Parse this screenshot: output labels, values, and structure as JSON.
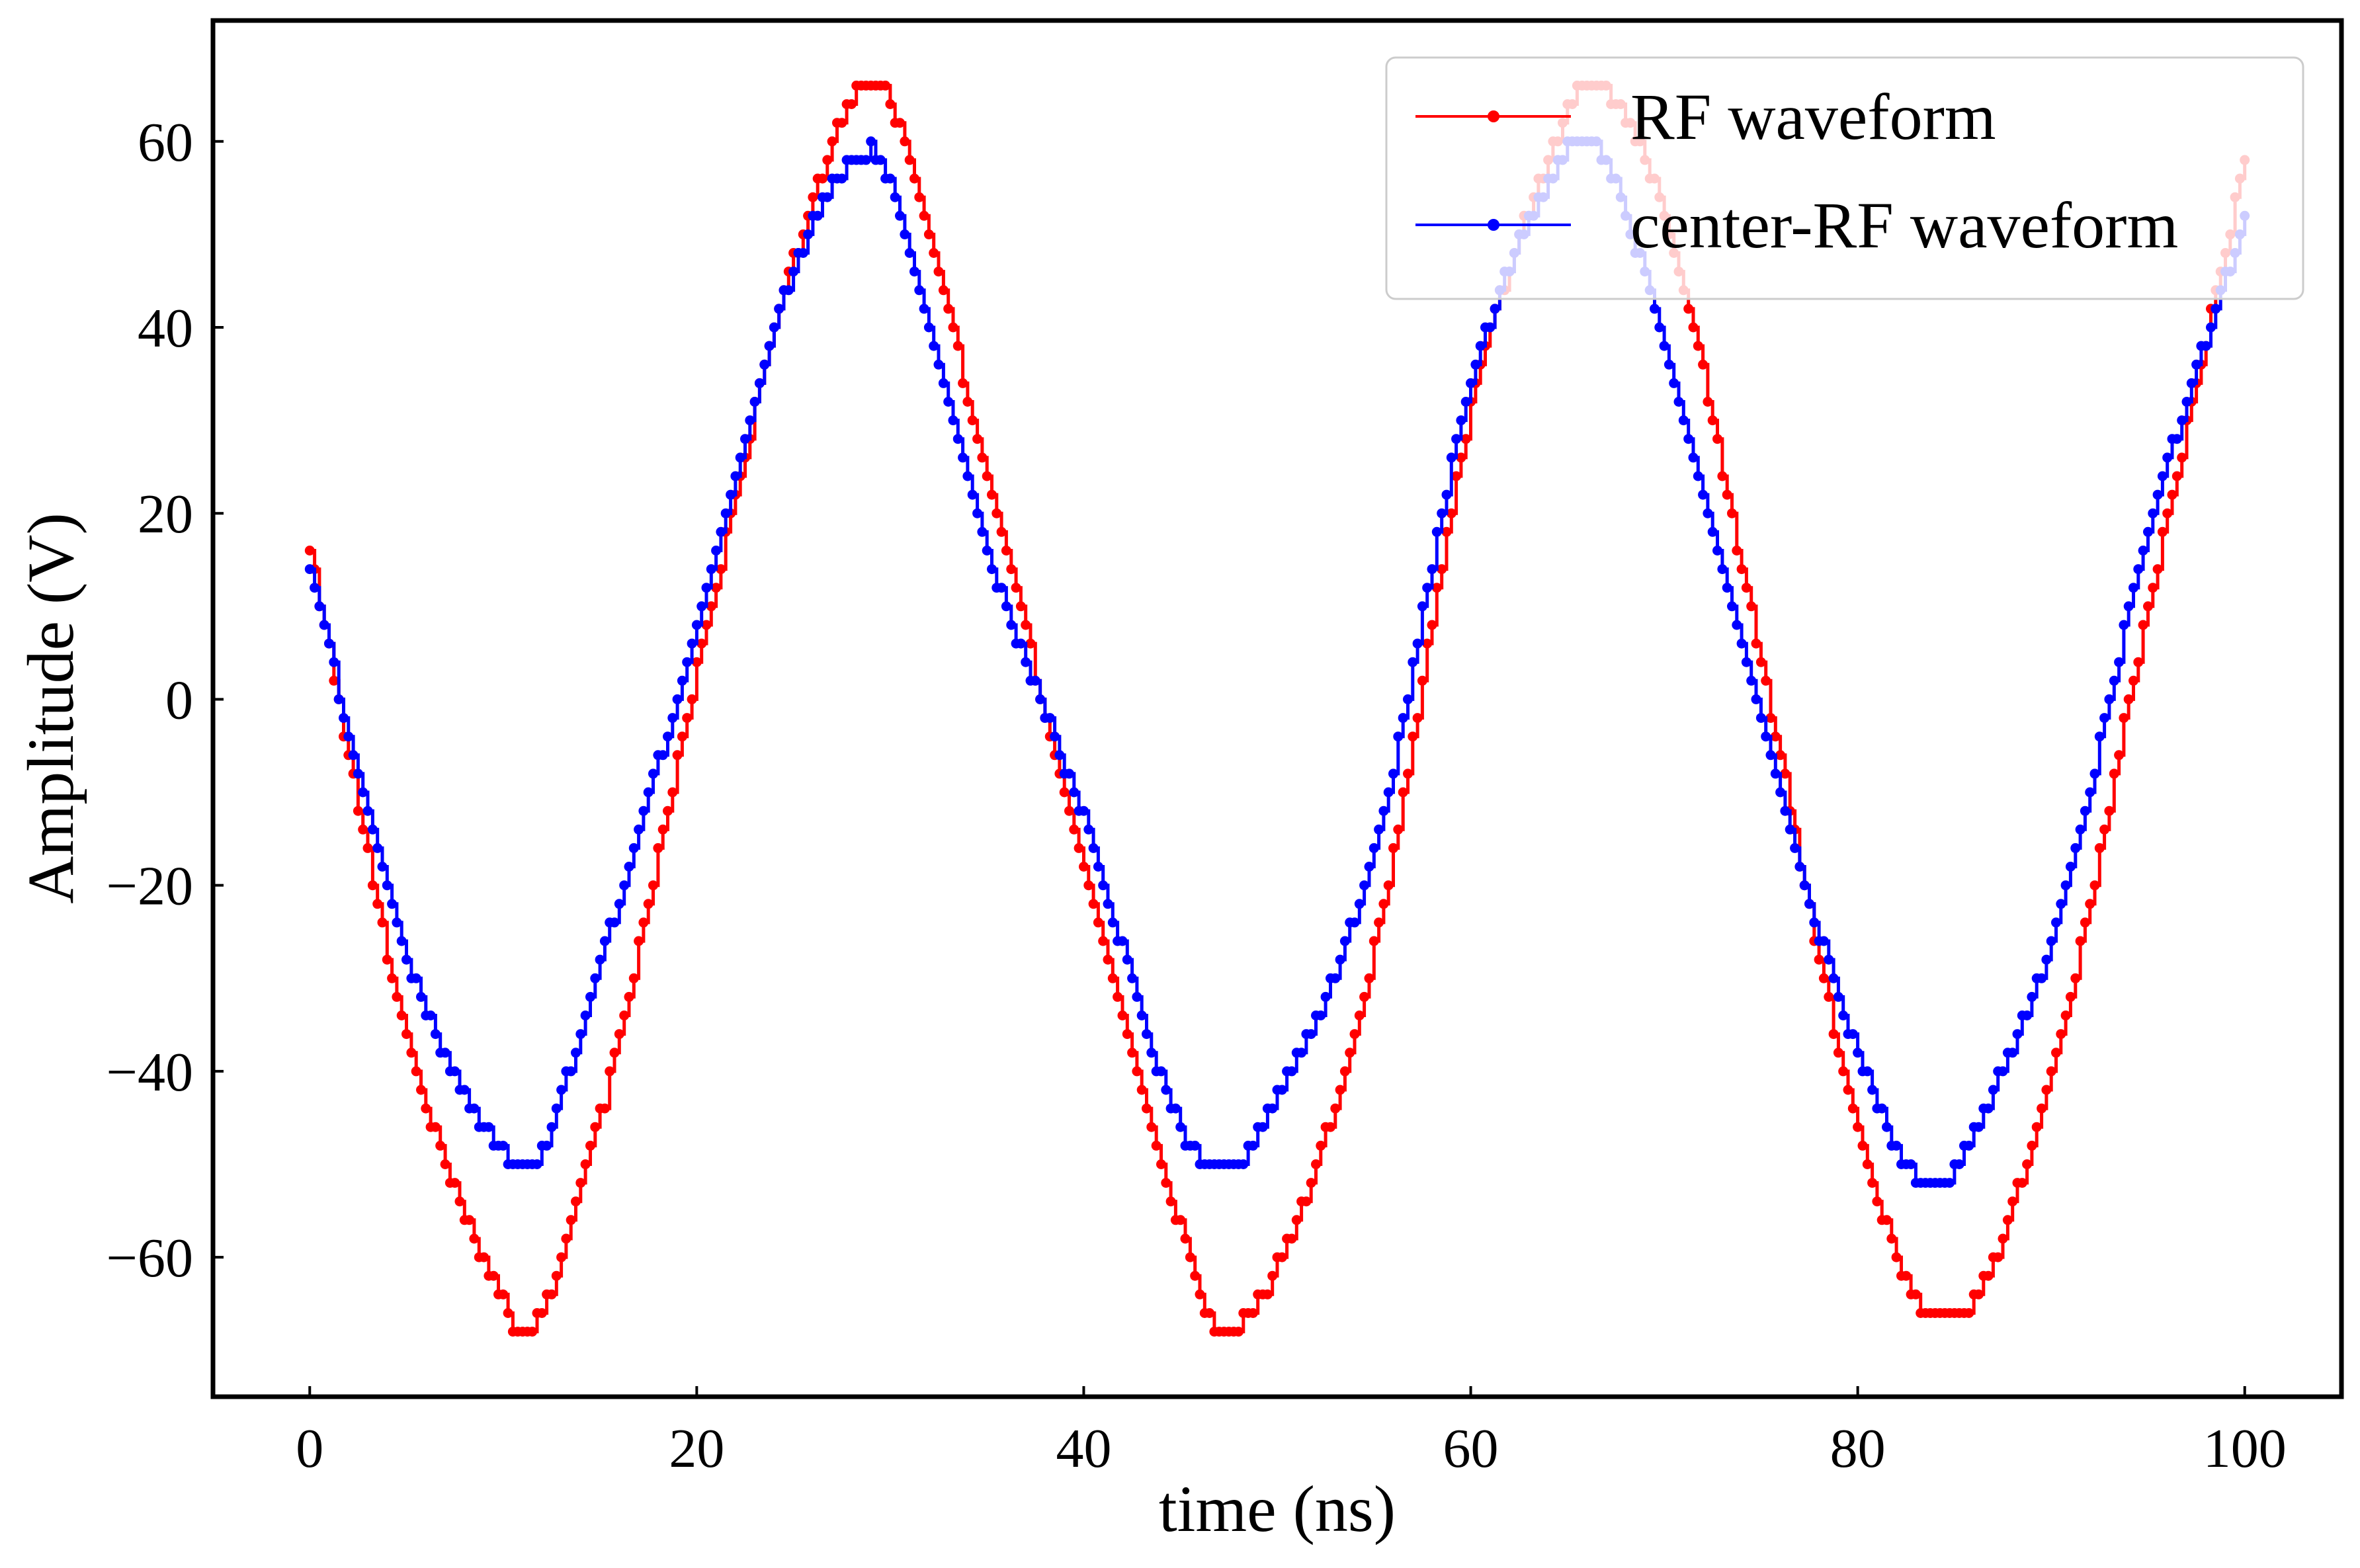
{
  "chart_data": {
    "type": "line",
    "title": "",
    "xlabel": "time (ns)",
    "ylabel": "Amplitude (V)",
    "xlim": [
      -5,
      105
    ],
    "ylim": [
      -75,
      73
    ],
    "xticks": [
      0,
      20,
      40,
      60,
      80,
      100
    ],
    "yticks": [
      -60,
      -40,
      -20,
      0,
      20,
      40,
      60
    ],
    "xtick_labels": [
      "0",
      "20",
      "40",
      "60",
      "80",
      "100"
    ],
    "ytick_labels": [
      "−60",
      "−40",
      "−20",
      "0",
      "20",
      "40",
      "60"
    ],
    "grid": false,
    "legend": {
      "location": "upper-right"
    },
    "sampling_ns": 0.25,
    "series": [
      {
        "name": "RF waveform",
        "color": "#ff0000",
        "marker": "circle",
        "x": [
          0,
          5,
          10,
          11,
          15,
          20,
          25,
          29,
          30,
          35,
          40,
          45,
          47,
          50,
          55,
          60,
          65,
          66,
          70,
          75,
          80,
          84,
          85,
          90,
          95,
          100
        ],
        "y": [
          16,
          -36,
          -65,
          -68,
          -45,
          3,
          47,
          66,
          64,
          24,
          -18,
          -57,
          -68,
          -61,
          -27,
          31,
          63,
          66,
          52,
          4,
          -46,
          -66,
          -66,
          -40,
          10,
          58
        ]
      },
      {
        "name": "center-RF waveform",
        "color": "#0000ff",
        "marker": "circle",
        "x": [
          0,
          5,
          10,
          11,
          15,
          20,
          25,
          29,
          30,
          35,
          40,
          45,
          47,
          50,
          55,
          60,
          65,
          66,
          70,
          75,
          80,
          84,
          85,
          90,
          95,
          100
        ],
        "y": [
          14,
          -28,
          -49,
          -51,
          -28,
          8,
          46,
          59,
          55,
          16,
          -13,
          -46,
          -51,
          -43,
          -16,
          34,
          59,
          60,
          38,
          -2,
          -38,
          -53,
          -50,
          -26,
          18,
          52
        ]
      }
    ]
  }
}
